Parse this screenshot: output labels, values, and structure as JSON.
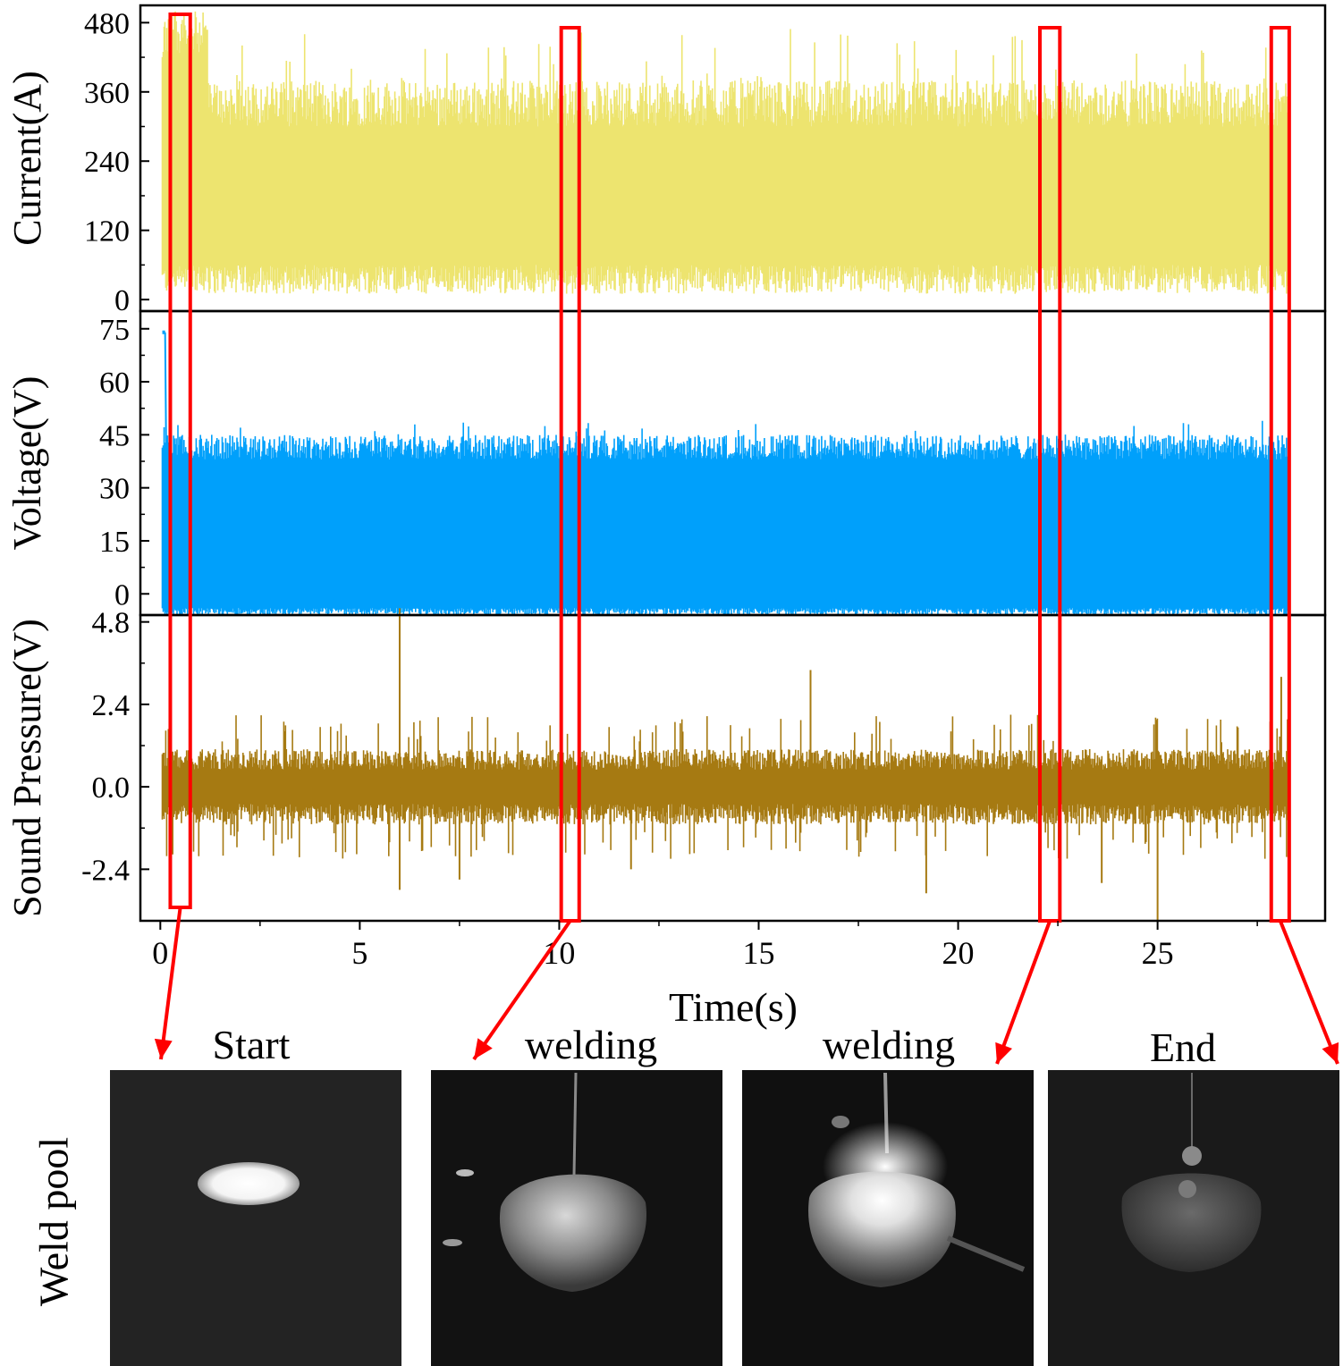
{
  "chart_data": {
    "type": "line",
    "xlabel": "Time(s)",
    "xlim": [
      -0.5,
      29.2
    ],
    "x_ticks": [
      0,
      5,
      10,
      15,
      20,
      25
    ],
    "panels": [
      {
        "name": "current",
        "ylabel": "Current(A)",
        "ylim": [
          -20,
          510
        ],
        "y_ticks": [
          "0",
          "120",
          "240",
          "360",
          "480"
        ],
        "y_tick_values": [
          0,
          120,
          240,
          360,
          480
        ],
        "color": "#EDE46F",
        "signal": {
          "t_start": 0.05,
          "t_end": 28.3,
          "low_min": 10,
          "low_max": 60,
          "high_min": 300,
          "high_max": 380,
          "high_peak": 470,
          "startup_peak": 500
        }
      },
      {
        "name": "voltage",
        "ylabel": "Voltage(V)",
        "ylim": [
          -6,
          80
        ],
        "y_ticks": [
          "0",
          "15",
          "30",
          "45",
          "60",
          "75"
        ],
        "y_tick_values": [
          0,
          15,
          30,
          45,
          60,
          75
        ],
        "color": "#00A0FB",
        "signal": {
          "t_start": 0.05,
          "t_end": 28.3,
          "initial": 74,
          "low_min": -6,
          "low_max": -4,
          "high_min": 38,
          "high_max": 45,
          "high_peak": 49
        }
      },
      {
        "name": "sound",
        "ylabel": "Sound Pressure(V)",
        "ylim": [
          -3.9,
          5.0
        ],
        "y_ticks": [
          "-2.4",
          "0.0",
          "2.4",
          "4.8"
        ],
        "y_tick_values": [
          -2.4,
          0.0,
          2.4,
          4.8
        ],
        "color": "#A67A12",
        "signal": {
          "t_start": 0.05,
          "t_end": 28.3,
          "band": 1.0,
          "spike_up_max": 5.2,
          "spike_down_min": -3.9
        },
        "spikes": [
          [
            6.0,
            5.2
          ],
          [
            6.0,
            -3.0
          ],
          [
            16.3,
            3.4
          ],
          [
            28.1,
            3.2
          ],
          [
            25.0,
            -3.9
          ],
          [
            19.2,
            -3.1
          ],
          [
            7.5,
            -2.7
          ],
          [
            11.8,
            -2.4
          ],
          [
            23.6,
            -2.8
          ]
        ]
      }
    ],
    "highlight_windows": [
      [
        0.25,
        0.75
      ],
      [
        10.05,
        10.5
      ],
      [
        22.05,
        22.55
      ],
      [
        27.85,
        28.3
      ]
    ],
    "highlight_color": "#FF0000"
  },
  "images": {
    "row_label": "Weld pool",
    "captions": [
      "Start",
      "welding",
      "welding",
      "End"
    ]
  }
}
